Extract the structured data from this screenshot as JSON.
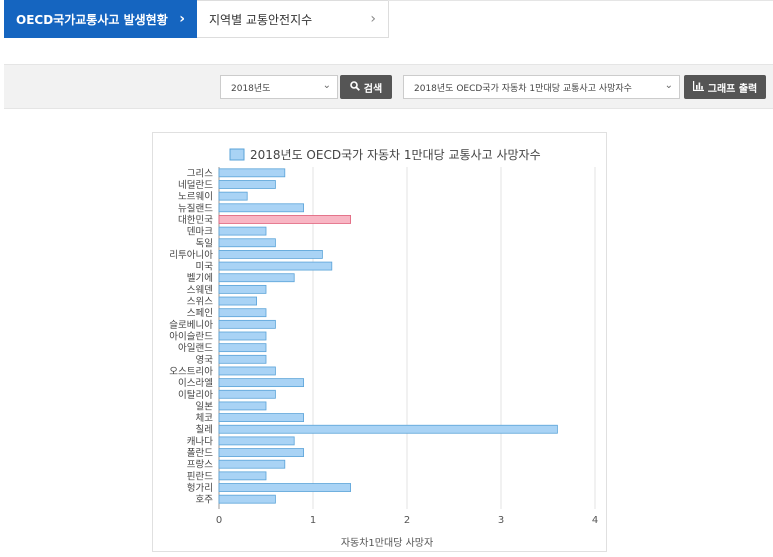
{
  "tabs": [
    {
      "label": "OECD국가교통사고 발생현황",
      "arrow": "›"
    },
    {
      "label": "지역별 교통안전지수",
      "arrow": "›"
    }
  ],
  "filter": {
    "year_value": "2018년도",
    "search_label": "검색",
    "indicator_value": "2018년도 OECD국가 자동차 1만대당 교통사고 사망자수",
    "graph_label": "그래프 출력"
  },
  "colors": {
    "bar": "#a9d3f5",
    "bar_border": "#5aa3d8",
    "highlight": "#f8b6c4",
    "highlight_border": "#e0607a",
    "tab_active": "#1565c0"
  },
  "chart_data": {
    "type": "bar",
    "orientation": "horizontal",
    "title": "2018년도 OECD국가 자동차 1만대당 교통사고 사망자수",
    "legend": "2018년도 OECD국가 자동차 1만대당 교통사고 사망자수",
    "xlabel": "자동차1만대당 사망자",
    "xlim": [
      0,
      4
    ],
    "xticks": [
      "0",
      "1",
      "2",
      "3",
      "4"
    ],
    "categories": [
      "그리스",
      "네덜란드",
      "노르웨이",
      "뉴질랜드",
      "대한민국",
      "덴마크",
      "독일",
      "리투아니아",
      "미국",
      "벨기에",
      "스웨덴",
      "스위스",
      "스페인",
      "슬로베니아",
      "아이슬란드",
      "아일랜드",
      "영국",
      "오스트리아",
      "이스라엘",
      "이탈리아",
      "일본",
      "체코",
      "칠레",
      "캐나다",
      "폴란드",
      "프랑스",
      "핀란드",
      "헝가리",
      "호주"
    ],
    "values": [
      0.7,
      0.6,
      0.3,
      0.9,
      1.4,
      0.5,
      0.6,
      1.1,
      1.2,
      0.8,
      0.5,
      0.4,
      0.5,
      0.6,
      0.5,
      0.5,
      0.5,
      0.6,
      0.9,
      0.6,
      0.5,
      0.9,
      3.6,
      0.8,
      0.9,
      0.7,
      0.5,
      1.4,
      0.6
    ],
    "highlight": "대한민국",
    "grid": true,
    "legend_position": "top"
  }
}
